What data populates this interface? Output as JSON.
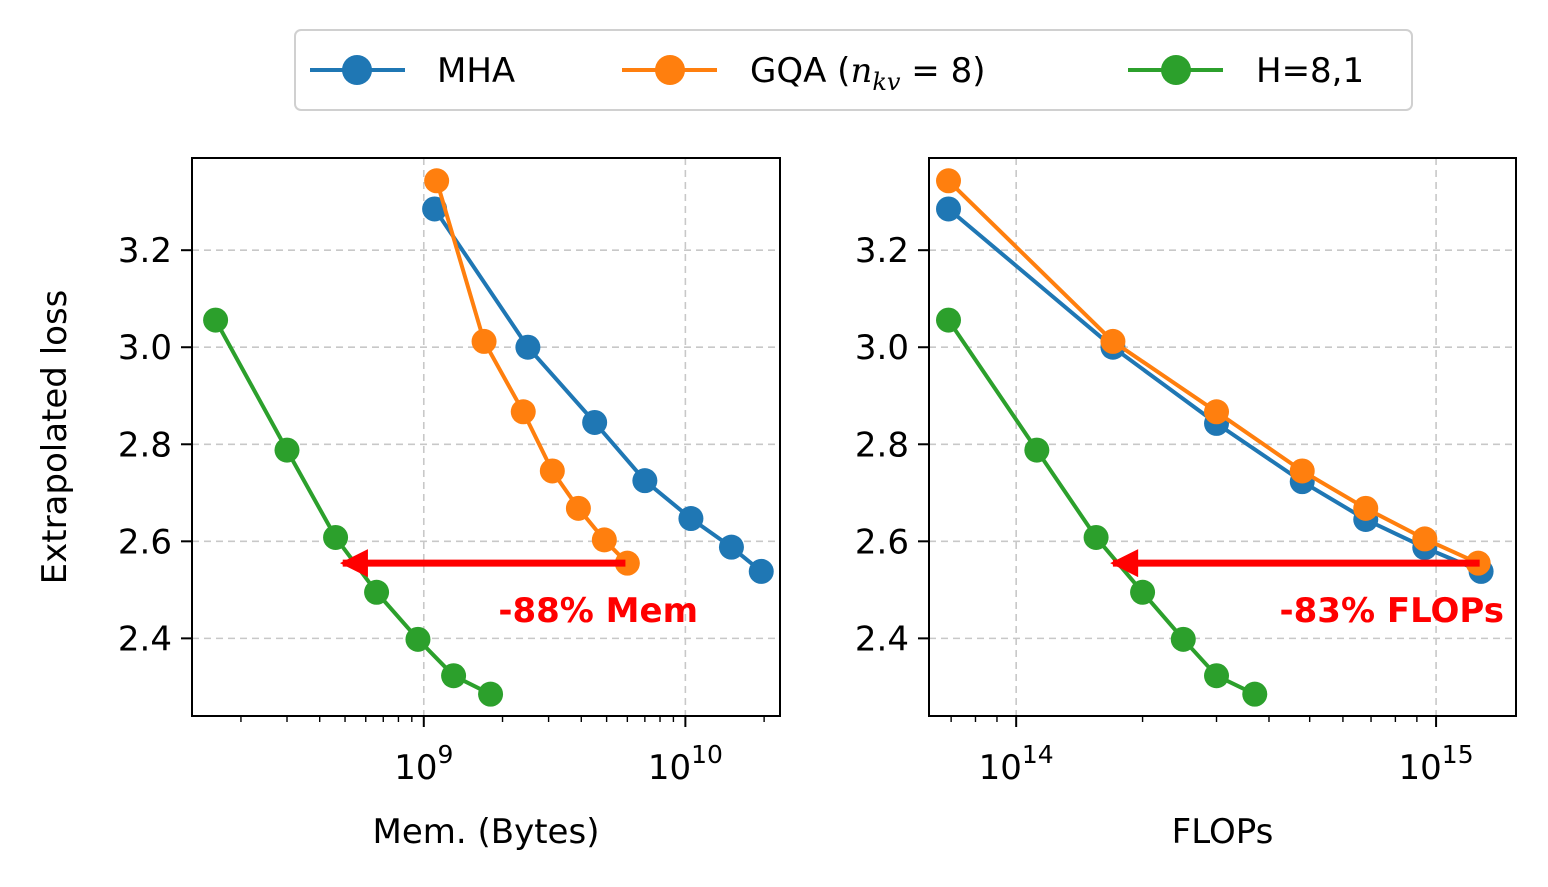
{
  "legend": {
    "entries": [
      {
        "label": "MHA",
        "color": "#1f77b4"
      },
      {
        "label": "GQA (",
        "math": "n",
        "sub": "kv",
        "tail": " = 8)",
        "color": "#ff7f0e"
      },
      {
        "label": "H=8,1",
        "color": "#2ca02c"
      }
    ],
    "placement": "top-center"
  },
  "chart_data": [
    {
      "type": "line",
      "xlabel": "Mem. (Bytes)",
      "ylabel": "Extrapolated loss",
      "xscale": "log",
      "xlim": [
        130000000.0,
        23000000000.0
      ],
      "ylim": [
        2.24,
        3.39
      ],
      "xticks": [
        {
          "value": 1000000000.0,
          "base": "10",
          "exp": "9"
        },
        {
          "value": 10000000000.0,
          "base": "10",
          "exp": "10"
        }
      ],
      "yticks": [
        {
          "value": 2.4,
          "label": "2.4"
        },
        {
          "value": 2.6,
          "label": "2.6"
        },
        {
          "value": 2.8,
          "label": "2.8"
        },
        {
          "value": 3.0,
          "label": "3.0"
        },
        {
          "value": 3.2,
          "label": "3.2"
        }
      ],
      "grid": true,
      "series": [
        {
          "name": "MHA",
          "color": "#1f77b4",
          "x": [
            1100000000.0,
            2500000000.0,
            4500000000.0,
            7000000000.0,
            10500000000.0,
            15000000000.0,
            19500000000.0
          ],
          "y": [
            3.285,
            3.0,
            2.845,
            2.725,
            2.647,
            2.588,
            2.538
          ]
        },
        {
          "name": "GQA",
          "color": "#ff7f0e",
          "x": [
            1120000000.0,
            1700000000.0,
            2400000000.0,
            3100000000.0,
            3900000000.0,
            4900000000.0,
            6000000000.0
          ],
          "y": [
            3.343,
            3.012,
            2.867,
            2.745,
            2.668,
            2.603,
            2.555
          ]
        },
        {
          "name": "H=8,1",
          "color": "#2ca02c",
          "x": [
            160000000.0,
            300000000.0,
            460000000.0,
            660000000.0,
            950000000.0,
            1300000000.0,
            1800000000.0
          ],
          "y": [
            3.056,
            2.788,
            2.608,
            2.495,
            2.398,
            2.323,
            2.285
          ]
        }
      ],
      "annotation": {
        "text": "-88% Mem",
        "arrow_from_x": 5900000000.0,
        "arrow_to_x": 490000000.0,
        "y": 2.555,
        "color": "#ff0000"
      }
    },
    {
      "type": "line",
      "xlabel": "FLOPs",
      "ylabel": "",
      "xscale": "log",
      "xlim": [
        62000000000000.0,
        1550000000000000.0
      ],
      "ylim": [
        2.24,
        3.39
      ],
      "xticks": [
        {
          "value": 100000000000000.0,
          "base": "10",
          "exp": "14"
        },
        {
          "value": 1000000000000000.0,
          "base": "10",
          "exp": "15"
        }
      ],
      "yticks": [
        {
          "value": 2.4,
          "label": "2.4"
        },
        {
          "value": 2.6,
          "label": "2.6"
        },
        {
          "value": 2.8,
          "label": "2.8"
        },
        {
          "value": 3.0,
          "label": "3.0"
        },
        {
          "value": 3.2,
          "label": "3.2"
        }
      ],
      "grid": true,
      "series": [
        {
          "name": "MHA",
          "color": "#1f77b4",
          "x": [
            69000000000000.0,
            170000000000000.0,
            300000000000000.0,
            480000000000000.0,
            680000000000000.0,
            940000000000000.0,
            1280000000000000.0
          ],
          "y": [
            3.285,
            3.0,
            2.843,
            2.723,
            2.645,
            2.587,
            2.538
          ]
        },
        {
          "name": "GQA",
          "color": "#ff7f0e",
          "x": [
            69000000000000.0,
            170000000000000.0,
            300000000000000.0,
            480000000000000.0,
            680000000000000.0,
            940000000000000.0,
            1260000000000000.0
          ],
          "y": [
            3.343,
            3.012,
            2.867,
            2.745,
            2.668,
            2.605,
            2.555
          ]
        },
        {
          "name": "H=8,1",
          "color": "#2ca02c",
          "x": [
            69000000000000.0,
            112000000000000.0,
            155000000000000.0,
            200000000000000.0,
            250000000000000.0,
            300000000000000.0,
            370000000000000.0
          ],
          "y": [
            3.056,
            2.788,
            2.608,
            2.495,
            2.398,
            2.323,
            2.285
          ]
        }
      ],
      "annotation": {
        "text": "-83% FLOPs",
        "arrow_from_x": 1270000000000000.0,
        "arrow_to_x": 170000000000000.0,
        "y": 2.555,
        "color": "#ff0000"
      }
    }
  ]
}
